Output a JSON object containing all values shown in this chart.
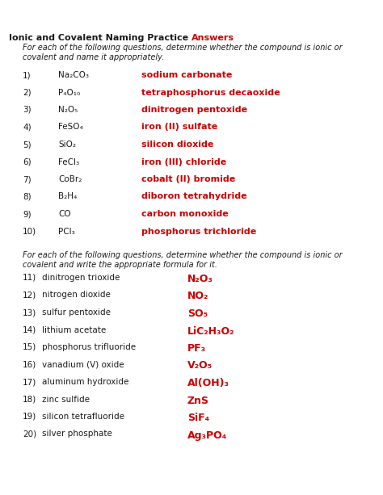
{
  "title_black": "Ionic and Covalent Naming Practice ",
  "title_red": "Answers",
  "instruction1": "For each of the following questions, determine whether the compound is ionic or\ncovalent and name it appropriately.",
  "instruction2": "For each of the following questions, determine whether the compound is ionic or\ncovalent and write the appropriate formula for it.",
  "background": "#ffffff",
  "black_color": "#1a1a1a",
  "red_color": "#cc0000",
  "figsize": [
    4.74,
    6.13
  ],
  "dpi": 100,
  "section1": [
    {
      "num": "1)",
      "formula": "Na₂CO₃",
      "answer": "sodium carbonate"
    },
    {
      "num": "2)",
      "formula": "P₄O₁₀",
      "answer": "tetraphosphorus decaoxide"
    },
    {
      "num": "3)",
      "formula": "N₂O₅",
      "answer": "dinitrogen pentoxide"
    },
    {
      "num": "4)",
      "formula": "FeSO₄",
      "answer": "iron (II) sulfate"
    },
    {
      "num": "5)",
      "formula": "SiO₂",
      "answer": "silicon dioxide"
    },
    {
      "num": "6)",
      "formula": "FeCl₃",
      "answer": "iron (III) chloride"
    },
    {
      "num": "7)",
      "formula": "CoBr₂",
      "answer": "cobalt (II) bromide"
    },
    {
      "num": "8)",
      "formula": "B₂H₄",
      "answer": "diboron tetrahydride"
    },
    {
      "num": "9)",
      "formula": "CO",
      "answer": "carbon monoxide"
    },
    {
      "num": "10)",
      "formula": "PCl₃",
      "answer": "phosphorus trichloride"
    }
  ],
  "section2": [
    {
      "num": "11)",
      "name": "dinitrogen trioxide",
      "formula": "N₂O₃"
    },
    {
      "num": "12)",
      "name": "nitrogen dioxide",
      "formula": "NO₂"
    },
    {
      "num": "13)",
      "name": "sulfur pentoxide",
      "formula": "SO₅"
    },
    {
      "num": "14)",
      "name": "lithium acetate",
      "formula": "LiC₂H₃O₂"
    },
    {
      "num": "15)",
      "name": "phosphorus trifluoride",
      "formula": "PF₃"
    },
    {
      "num": "16)",
      "name": "vanadium (V) oxide",
      "formula": "V₂O₅"
    },
    {
      "num": "17)",
      "name": "aluminum hydroxide",
      "formula": "Al(OH)₃"
    },
    {
      "num": "18)",
      "name": "zinc sulfide",
      "formula": "ZnS"
    },
    {
      "num": "19)",
      "name": "silicon tetrafluoride",
      "formula": "SiF₄"
    },
    {
      "num": "20)",
      "name": "silver phosphate",
      "formula": "Ag₃PO₄"
    }
  ]
}
